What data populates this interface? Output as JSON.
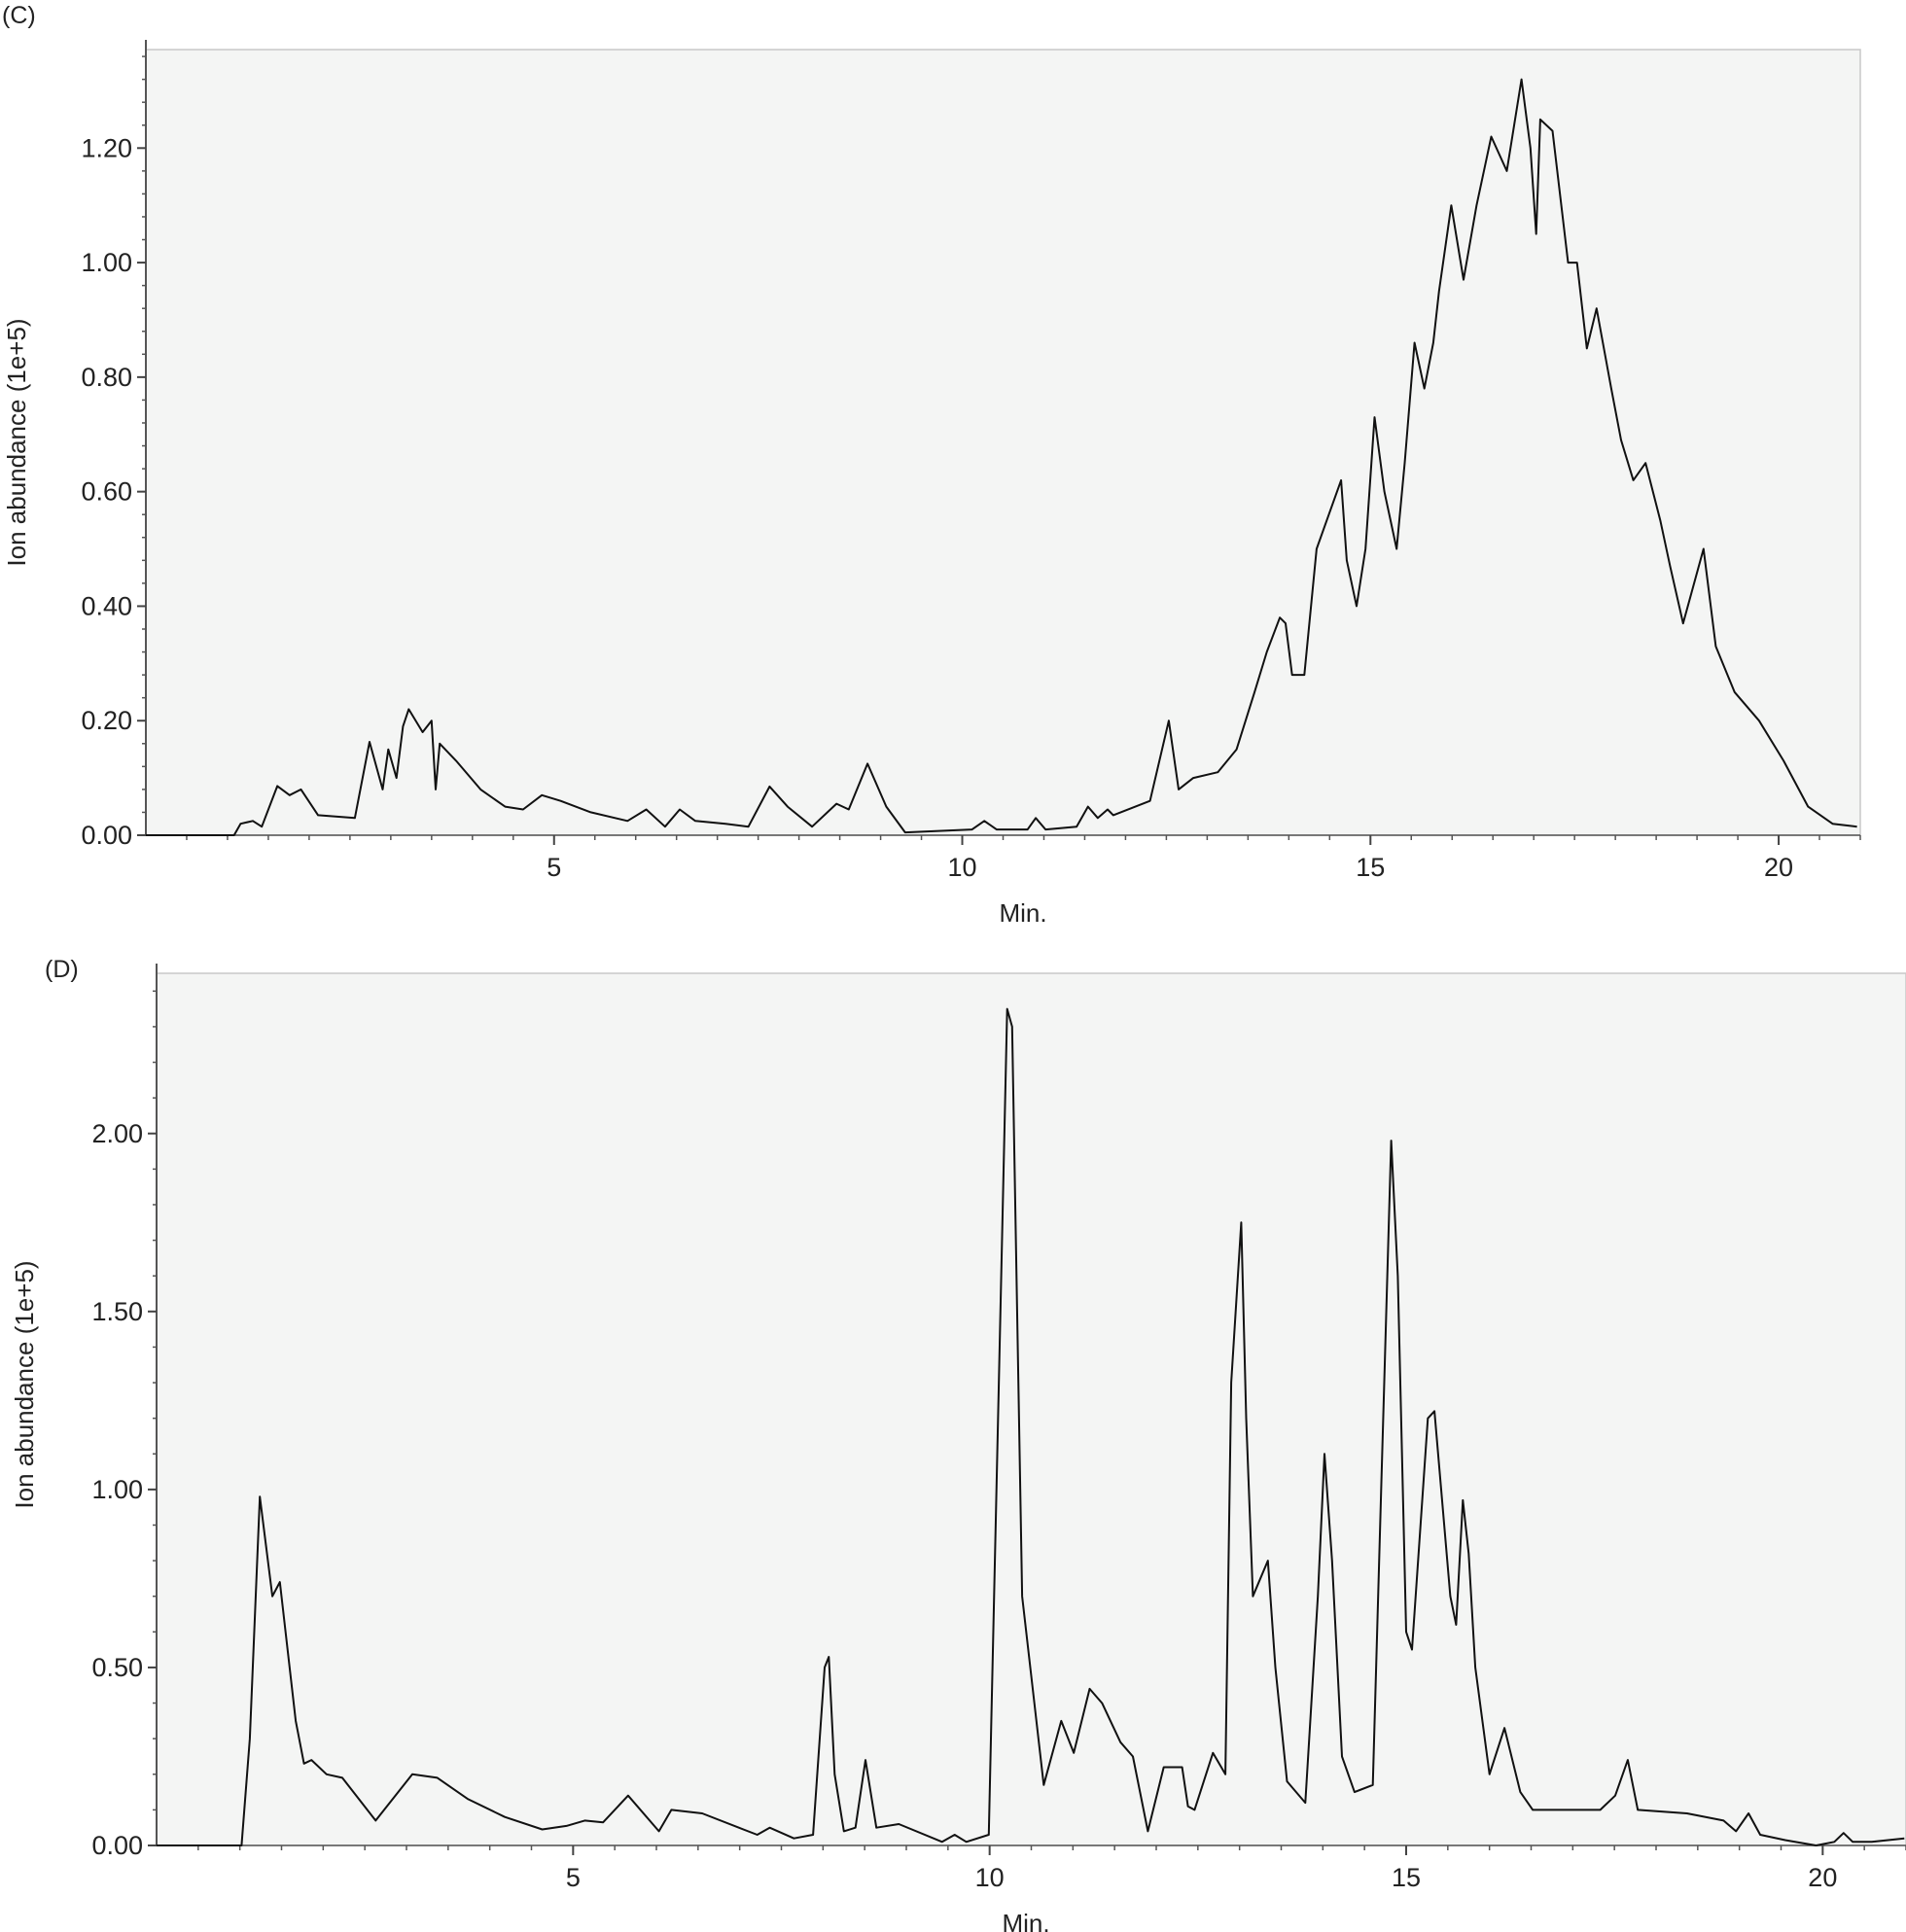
{
  "chart_data": [
    {
      "panel": "(C)",
      "type": "line",
      "xlabel": "Min.",
      "ylabel": "Ion abundance (1e+5)",
      "xlim": [
        0,
        21
      ],
      "ylim": [
        0,
        1.372
      ],
      "xticks": [
        5,
        10,
        15,
        20
      ],
      "xtick_labels": [
        "5",
        "10",
        "15",
        "20"
      ],
      "yticks": [
        0,
        0.2,
        0.4,
        0.6,
        0.8,
        1.0,
        1.2
      ],
      "ytick_labels": [
        "0.00",
        "0.20",
        "0.40",
        "0.60",
        "0.80",
        "1.00",
        "1.20"
      ],
      "grid": false,
      "line_color": "#111111",
      "plot_bg": "#f4f5f4",
      "x": [
        0,
        1.08,
        1.16,
        1.31,
        1.42,
        1.61,
        1.76,
        1.9,
        2.11,
        2.56,
        2.74,
        2.9,
        2.97,
        3.07,
        3.15,
        3.22,
        3.39,
        3.5,
        3.55,
        3.6,
        3.8,
        4.1,
        4.4,
        4.62,
        4.85,
        5.08,
        5.45,
        5.9,
        6.13,
        6.36,
        6.54,
        6.73,
        7.1,
        7.38,
        7.64,
        7.86,
        8.16,
        8.46,
        8.61,
        8.84,
        9.07,
        9.3,
        10.12,
        10.27,
        10.42,
        10.8,
        10.9,
        11.02,
        11.4,
        11.54,
        11.66,
        11.78,
        11.85,
        12.3,
        12.53,
        12.65,
        12.83,
        13.13,
        13.36,
        13.58,
        13.73,
        13.89,
        13.96,
        14.04,
        14.19,
        14.34,
        14.49,
        14.64,
        14.71,
        14.83,
        14.94,
        15.05,
        15.17,
        15.32,
        15.42,
        15.54,
        15.66,
        15.77,
        15.84,
        15.99,
        16.14,
        16.3,
        16.48,
        16.67,
        16.85,
        16.96,
        17.03,
        17.08,
        17.23,
        17.42,
        17.53,
        17.65,
        17.77,
        17.95,
        18.07,
        18.22,
        18.37,
        18.55,
        18.67,
        18.83,
        19.08,
        19.23,
        19.46,
        19.76,
        20.06,
        20.36,
        20.66,
        20.96
      ],
      "y": [
        0,
        0,
        0.02,
        0.025,
        0.015,
        0.086,
        0.07,
        0.08,
        0.035,
        0.03,
        0.163,
        0.08,
        0.15,
        0.1,
        0.19,
        0.22,
        0.18,
        0.2,
        0.08,
        0.16,
        0.13,
        0.08,
        0.05,
        0.045,
        0.07,
        0.06,
        0.04,
        0.025,
        0.045,
        0.015,
        0.045,
        0.025,
        0.02,
        0.015,
        0.085,
        0.05,
        0.015,
        0.055,
        0.045,
        0.125,
        0.05,
        0.005,
        0.01,
        0.025,
        0.01,
        0.01,
        0.03,
        0.01,
        0.015,
        0.05,
        0.03,
        0.045,
        0.035,
        0.06,
        0.2,
        0.08,
        0.1,
        0.11,
        0.15,
        0.25,
        0.32,
        0.38,
        0.37,
        0.28,
        0.28,
        0.5,
        0.56,
        0.62,
        0.48,
        0.4,
        0.5,
        0.73,
        0.6,
        0.5,
        0.65,
        0.86,
        0.78,
        0.86,
        0.95,
        1.1,
        0.97,
        1.1,
        1.22,
        1.16,
        1.32,
        1.2,
        1.05,
        1.25,
        1.23,
        1.0,
        1.0,
        0.85,
        0.92,
        0.78,
        0.69,
        0.62,
        0.65,
        0.55,
        0.47,
        0.37,
        0.5,
        0.33,
        0.25,
        0.2,
        0.13,
        0.05,
        0.02,
        0.015
      ]
    },
    {
      "panel": "(D)",
      "type": "line",
      "xlabel": "Min.",
      "ylabel": "Ion abundance (1e+5)",
      "xlim": [
        0,
        21
      ],
      "ylim": [
        0,
        2.45
      ],
      "xticks": [
        5,
        10,
        15,
        20
      ],
      "xtick_labels": [
        "5",
        "10",
        "15",
        "20"
      ],
      "yticks": [
        0,
        0.5,
        1.0,
        1.5,
        2.0
      ],
      "ytick_labels": [
        "0.00",
        "0.50",
        "1.00",
        "1.50",
        "2.00"
      ],
      "grid": false,
      "line_color": "#111111",
      "plot_bg": "#f4f5f4",
      "x": [
        0,
        1.02,
        1.12,
        1.24,
        1.39,
        1.48,
        1.67,
        1.77,
        1.86,
        2.04,
        2.23,
        2.63,
        3.07,
        3.37,
        3.74,
        4.18,
        4.63,
        4.92,
        5.14,
        5.36,
        5.66,
        6.03,
        6.18,
        6.55,
        6.99,
        7.21,
        7.36,
        7.65,
        7.88,
        8.02,
        8.07,
        8.14,
        8.25,
        8.39,
        8.51,
        8.64,
        8.91,
        9.43,
        9.58,
        9.72,
        9.99,
        10.21,
        10.27,
        10.39,
        10.65,
        10.86,
        11.01,
        11.2,
        11.35,
        11.57,
        11.72,
        11.9,
        12.09,
        12.31,
        12.38,
        12.46,
        12.68,
        12.83,
        12.9,
        13.02,
        13.08,
        13.16,
        13.34,
        13.43,
        13.57,
        13.79,
        13.94,
        14.02,
        14.11,
        14.23,
        14.38,
        14.6,
        14.7,
        14.82,
        14.9,
        15.0,
        15.07,
        15.26,
        15.34,
        15.53,
        15.6,
        15.68,
        15.75,
        15.83,
        16.0,
        16.18,
        16.37,
        16.52,
        16.74,
        17.33,
        17.51,
        17.66,
        17.78,
        18.37,
        18.81,
        18.96,
        19.11,
        19.25,
        19.55,
        19.92,
        20.14,
        20.25,
        20.36,
        20.59,
        20.98
      ],
      "y": [
        0,
        0,
        0.3,
        0.98,
        0.7,
        0.74,
        0.35,
        0.23,
        0.24,
        0.2,
        0.19,
        0.07,
        0.2,
        0.19,
        0.13,
        0.08,
        0.045,
        0.055,
        0.07,
        0.065,
        0.14,
        0.04,
        0.1,
        0.09,
        0.05,
        0.03,
        0.05,
        0.02,
        0.03,
        0.5,
        0.53,
        0.2,
        0.04,
        0.05,
        0.24,
        0.05,
        0.06,
        0.01,
        0.03,
        0.01,
        0.03,
        2.35,
        2.3,
        0.7,
        0.17,
        0.35,
        0.26,
        0.44,
        0.4,
        0.29,
        0.25,
        0.04,
        0.22,
        0.22,
        0.11,
        0.1,
        0.26,
        0.2,
        1.3,
        1.75,
        1.2,
        0.7,
        0.8,
        0.5,
        0.18,
        0.12,
        0.7,
        1.1,
        0.8,
        0.25,
        0.15,
        0.17,
        1.0,
        1.98,
        1.6,
        0.6,
        0.55,
        1.2,
        1.22,
        0.7,
        0.62,
        0.97,
        0.82,
        0.5,
        0.2,
        0.33,
        0.15,
        0.1,
        0.1,
        0.1,
        0.14,
        0.24,
        0.1,
        0.09,
        0.07,
        0.04,
        0.09,
        0.03,
        0.015,
        0.0,
        0.01,
        0.035,
        0.01,
        0.01,
        0.02
      ]
    }
  ]
}
